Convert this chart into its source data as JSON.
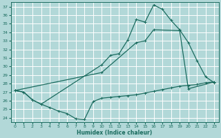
{
  "xlabel": "Humidex (Indice chaleur)",
  "bg_color": "#b2d8d8",
  "grid_color": "#ffffff",
  "line_color": "#1a6b5e",
  "xlim": [
    -0.5,
    23.5
  ],
  "ylim": [
    23.5,
    37.5
  ],
  "xticks": [
    0,
    1,
    2,
    3,
    4,
    5,
    6,
    7,
    8,
    9,
    10,
    11,
    12,
    13,
    14,
    15,
    16,
    17,
    18,
    19,
    20,
    21,
    22,
    23
  ],
  "yticks": [
    24,
    25,
    26,
    27,
    28,
    29,
    30,
    31,
    32,
    33,
    34,
    35,
    36,
    37
  ],
  "line_upper_x": [
    0,
    1,
    2,
    3,
    10,
    11,
    12,
    13,
    14,
    15,
    16,
    17,
    18,
    19,
    20,
    21,
    22,
    23
  ],
  "line_upper_y": [
    27.2,
    27.0,
    26.1,
    25.6,
    30.2,
    31.3,
    31.5,
    33.1,
    35.5,
    35.2,
    37.2,
    36.7,
    35.4,
    34.3,
    32.8,
    30.7,
    28.8,
    28.1
  ],
  "line_lower_x": [
    0,
    1,
    2,
    3,
    4,
    5,
    6,
    7,
    8,
    9,
    10,
    11,
    12,
    13,
    14,
    15,
    16,
    17,
    18,
    19,
    20,
    21,
    22,
    23
  ],
  "line_lower_y": [
    27.2,
    27.0,
    26.1,
    25.6,
    25.2,
    24.8,
    24.5,
    23.9,
    23.8,
    25.9,
    26.3,
    26.4,
    26.5,
    26.6,
    26.7,
    26.9,
    27.1,
    27.3,
    27.5,
    27.7,
    27.8,
    27.9,
    28.1,
    28.2
  ],
  "line_mid_x": [
    0,
    10,
    14,
    15,
    16,
    19,
    20,
    23
  ],
  "line_mid_y": [
    27.2,
    29.3,
    32.8,
    33.0,
    34.3,
    34.2,
    27.4,
    28.2
  ],
  "marker": "+",
  "markersize": 3.5,
  "linewidth": 0.9
}
